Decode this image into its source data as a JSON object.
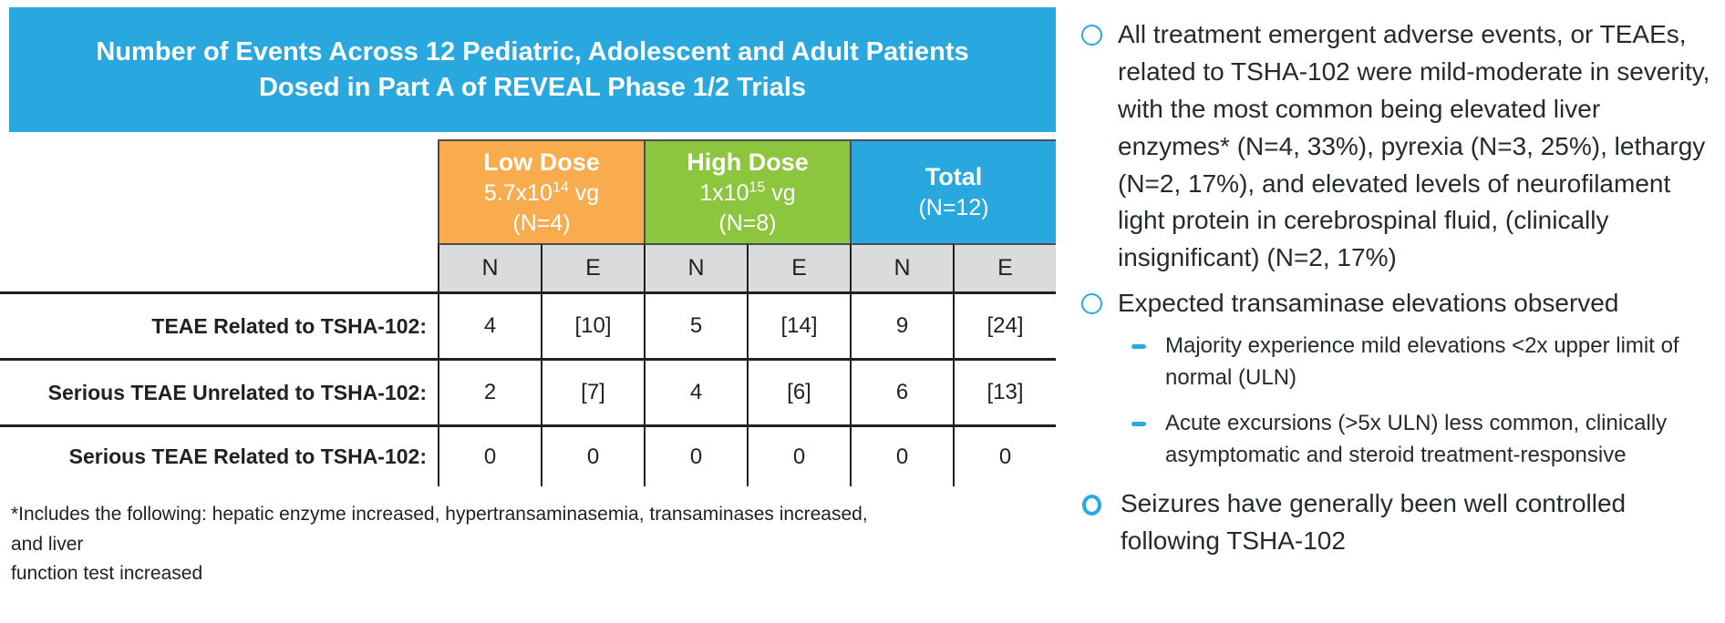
{
  "colors": {
    "header_blue": "#29A8E0",
    "low_dose_orange": "#F8AC4D",
    "high_dose_green": "#8CC63F",
    "subheader_gray": "#DADBDC",
    "line_black": "#231F20",
    "bullet_blue": "#29A8E0",
    "body_text": "#242B2E"
  },
  "table": {
    "title_line1": "Number of Events Across 12 Pediatric, Adolescent and Adult Patients",
    "title_line2": "Dosed in Part A of REVEAL Phase 1/2 Trials",
    "col_groups": [
      {
        "label": "Low Dose",
        "dose_base": "5.7x10",
        "dose_sup": "14",
        "dose_unit": " vg",
        "n": "(N=4)"
      },
      {
        "label": "High Dose",
        "dose_base": "1x10",
        "dose_sup": "15",
        "dose_unit": " vg",
        "n": "(N=8)"
      },
      {
        "label": "Total",
        "n": "(N=12)"
      }
    ],
    "subheaders": [
      "N",
      "E",
      "N",
      "E",
      "N",
      "E"
    ],
    "rows": [
      {
        "label": "TEAE Related to TSHA-102:",
        "values": [
          "4",
          "[10]",
          "5",
          "[14]",
          "9",
          "[24]"
        ]
      },
      {
        "label": "Serious TEAE Unrelated to TSHA-102:",
        "values": [
          "2",
          "[7]",
          "4",
          "[6]",
          "6",
          "[13]"
        ]
      },
      {
        "label": "Serious TEAE Related to TSHA-102:",
        "values": [
          "0",
          "0",
          "0",
          "0",
          "0",
          "0"
        ]
      }
    ],
    "footnote_line1": "*Includes the following: hepatic enzyme increased, hypertransaminasemia, transaminases increased, and liver",
    "footnote_line2": "function test increased"
  },
  "bullets": {
    "item1": "All treatment emergent adverse events, or TEAEs, related to TSHA-102 were mild-moderate in severity, with the most common being elevated liver enzymes* (N=4, 33%), pyrexia (N=3, 25%), lethargy (N=2, 17%), and elevated levels of neurofilament light protein in cerebrospinal fluid,  (clinically insignificant) (N=2, 17%)",
    "item2": "Expected transaminase elevations observed",
    "sub_items": [
      "Majority experience mild elevations <2x upper limit of normal (ULN)",
      "Acute excursions (>5x ULN) less common, clinically asymptomatic and steroid treatment-responsive"
    ],
    "item3": "Seizures have generally been well controlled following TSHA-102"
  }
}
